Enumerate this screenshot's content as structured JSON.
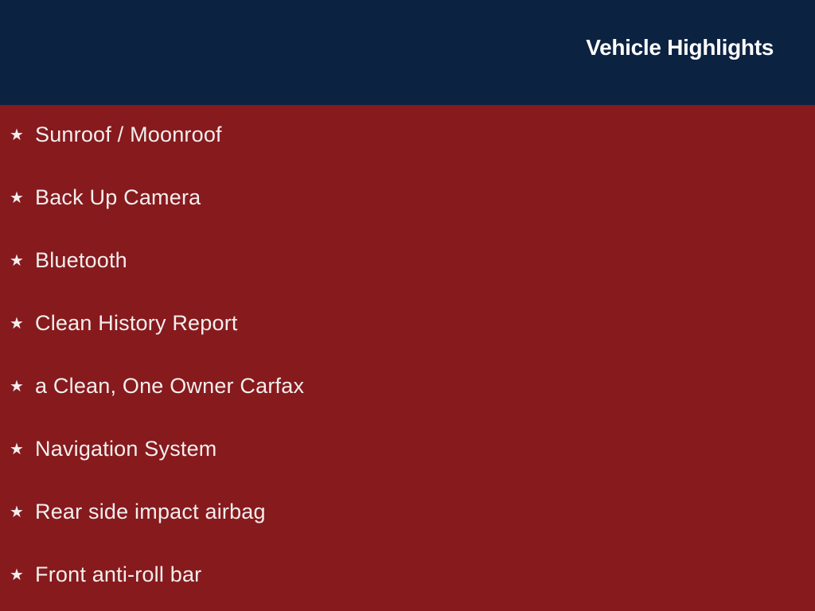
{
  "header": {
    "title": "Vehicle Highlights"
  },
  "colors": {
    "header_bg": "#0c2241",
    "body_bg": "#861a1d",
    "text": "#ffffff"
  },
  "highlights": {
    "icon": "star-icon",
    "items": [
      "Sunroof / Moonroof",
      "Back Up Camera",
      "Bluetooth",
      "Clean History Report",
      "a Clean, One Owner Carfax",
      "Navigation System",
      "Rear side impact airbag",
      "Front anti-roll bar"
    ]
  }
}
